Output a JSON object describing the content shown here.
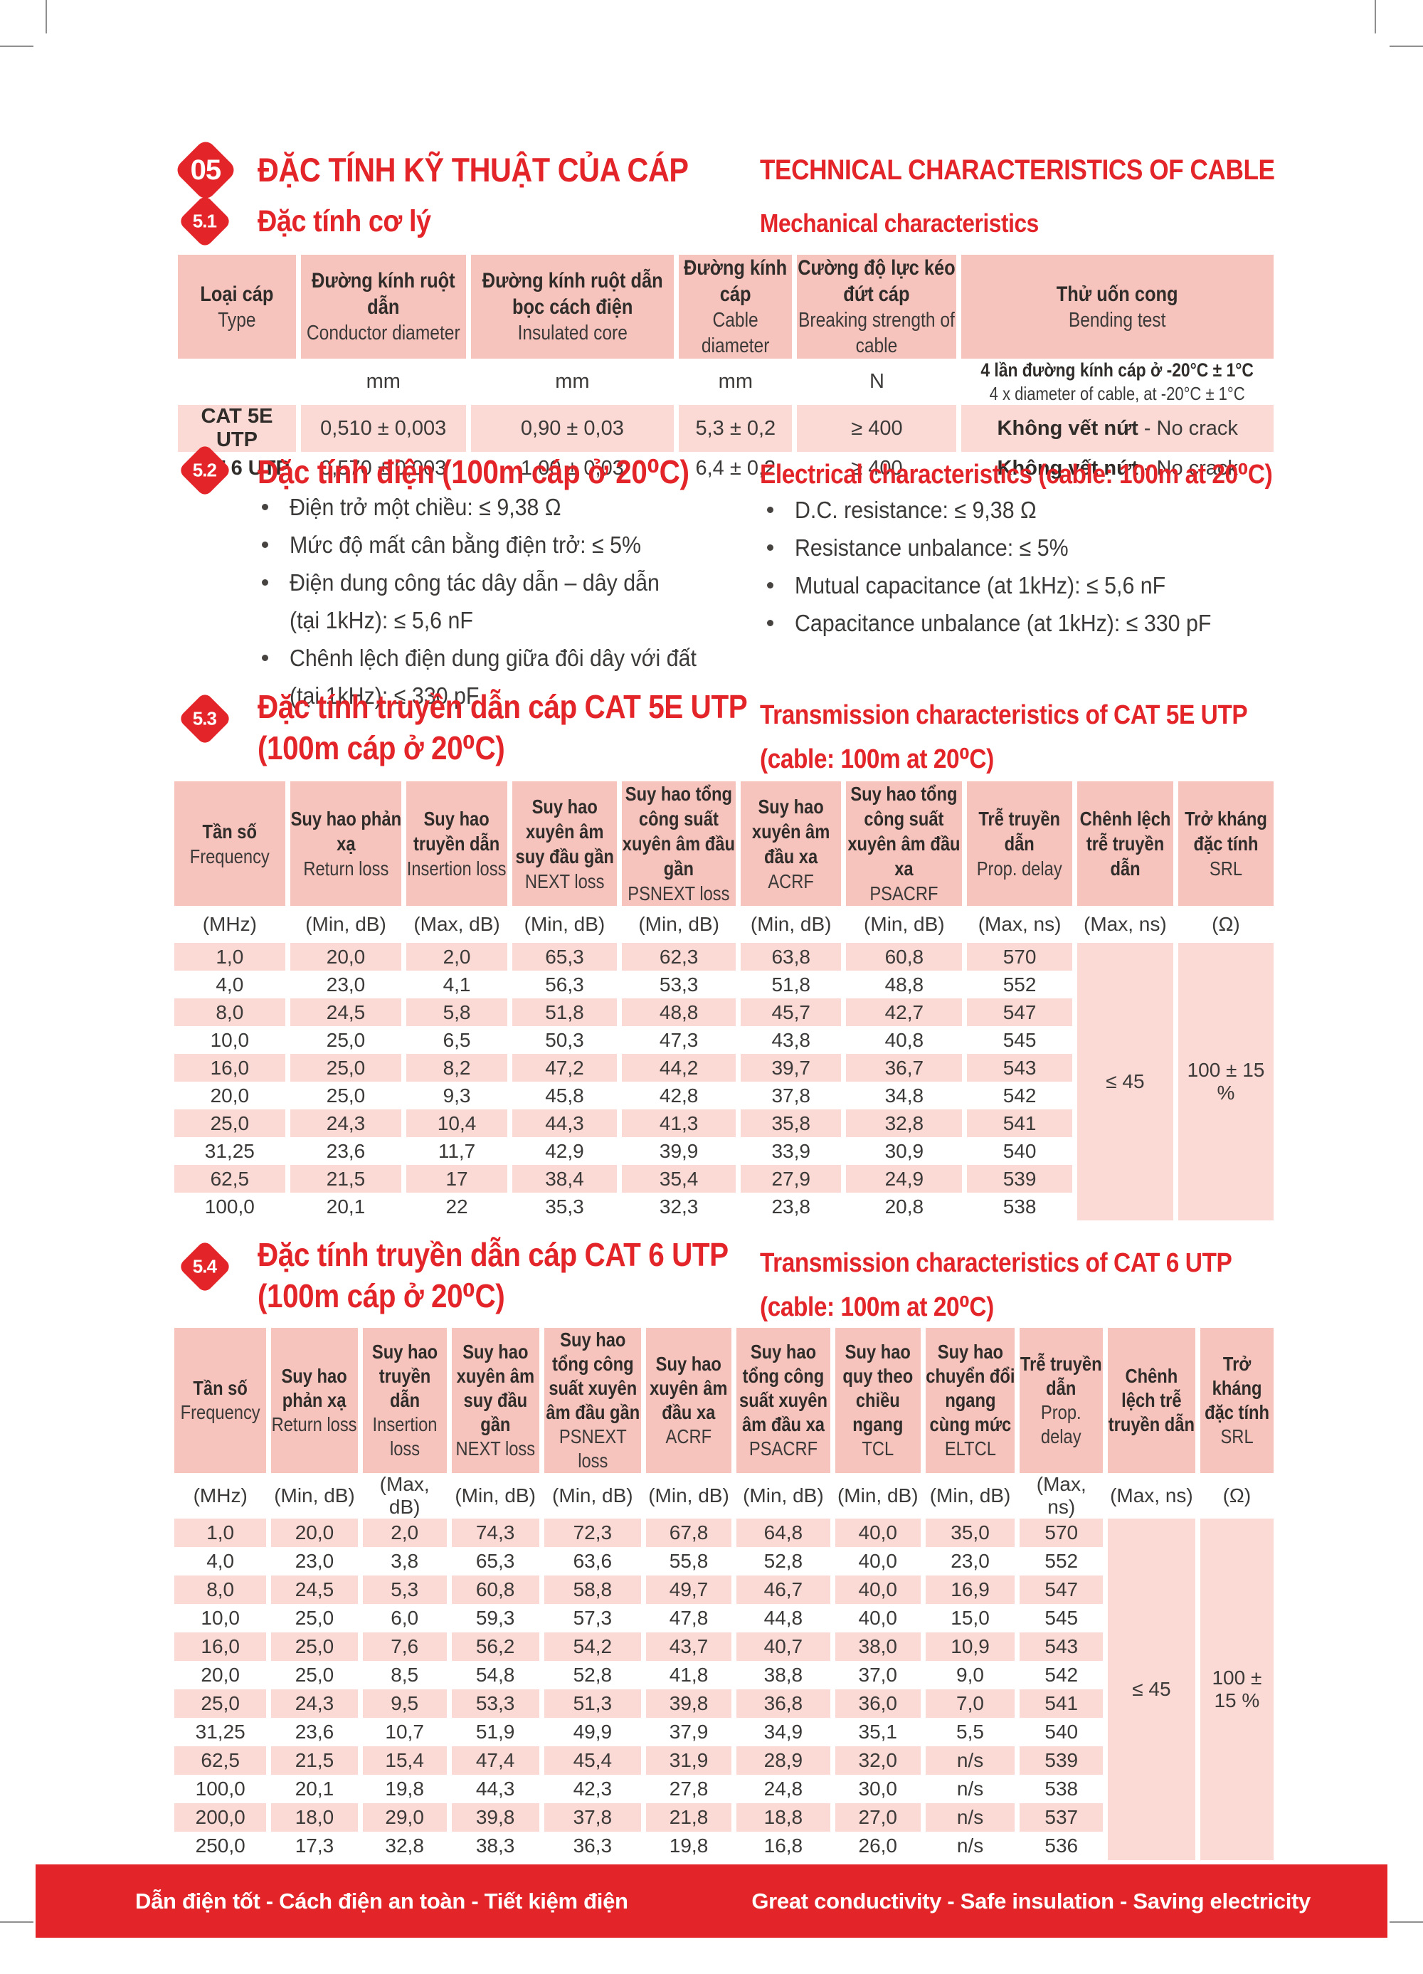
{
  "header": {
    "number": "05",
    "title_vi": "ĐẶC TÍNH KỸ THUẬT CỦA CÁP",
    "title_en": "TECHNICAL CHARACTERISTICS OF CABLE"
  },
  "colors": {
    "accent_red": "#E32429",
    "table_header_pink": "#F6C3BD",
    "row_stripe_pink": "#FBD9D4"
  },
  "mechanical": {
    "number": "5.1",
    "title_vi": "Đặc tính cơ lý",
    "title_en": "Mechanical characteristics",
    "table": {
      "columns": [
        {
          "vi": "Loại cáp",
          "en": "Type"
        },
        {
          "vi": "Đường kính ruột dẫn",
          "en": "Conductor diameter"
        },
        {
          "vi": "Đường kính ruột dẫn bọc cách điện",
          "en": "Insulated core"
        },
        {
          "vi": "Đường kính cáp",
          "en": "Cable diameter"
        },
        {
          "vi": "Cường độ lực kéo đứt cáp",
          "en": "Breaking strength of cable"
        },
        {
          "vi": "Thử uốn cong",
          "en": "Bending test"
        }
      ],
      "units": [
        "",
        "mm",
        "mm",
        "mm",
        "N",
        ""
      ],
      "bend_unit_vi": "4 lần đường kính cáp ở -20°C ± 1°C",
      "bend_unit_en": "4 x diameter of cable, at -20°C ± 1°C",
      "rows": [
        {
          "type": "CAT 5E UTP",
          "values": [
            "0,510 ± 0,003",
            "0,90 ± 0,03",
            "5,3 ± 0,2",
            "≥ 400"
          ],
          "bend_vi": "Không vết nứt",
          "bend_en": " - No crack"
        },
        {
          "type": "CAT 6 UTP",
          "values": [
            "0,570 ± 0,003",
            "1,00 ± 0,03",
            "6,4 ± 0,2",
            "≥ 400"
          ],
          "bend_vi": "Không vết nứt",
          "bend_en": " - No crack"
        }
      ]
    }
  },
  "electrical": {
    "number": "5.2",
    "title_vi": "Đặc tính điện (100m cáp ở 20⁰C)",
    "title_en": "Electrical characteristics (cable: 100m at 20⁰C)",
    "bullets_vi": [
      [
        "Điện trở một chiều: ≤ 9,38 Ω"
      ],
      [
        "Mức độ mất cân bằng điện trở: ≤ 5%"
      ],
      [
        "Điện dung công tác dây dẫn – dây dẫn",
        "(tại 1kHz): ≤ 5,6 nF"
      ],
      [
        "Chênh lệch điện dung giữa đôi dây với đất",
        "(tại 1kHz): ≤ 330 pF"
      ]
    ],
    "bullets_en": [
      [
        "D.C. resistance: ≤ 9,38 Ω"
      ],
      [
        "Resistance unbalance: ≤ 5%"
      ],
      [
        "Mutual capacitance (at 1kHz): ≤ 5,6 nF"
      ],
      [
        "Capacitance unbalance (at 1kHz): ≤ 330 pF"
      ]
    ]
  },
  "cat5e": {
    "number": "5.3",
    "title_vi_1": "Đặc tính truyền dẫn  cáp CAT 5E UTP",
    "title_vi_2": "(100m cáp ở 20⁰C)",
    "title_en_1": "Transmission characteristics of CAT 5E UTP",
    "title_en_2": "(cable: 100m at 20⁰C)",
    "table": {
      "columns": [
        {
          "vi": "Tần số",
          "en": "Frequency",
          "unit": "(MHz)"
        },
        {
          "vi": "Suy hao phản xạ",
          "en": "Return loss",
          "unit": "(Min, dB)"
        },
        {
          "vi": "Suy hao truyền dẫn",
          "en": "Insertion loss",
          "unit": "(Max, dB)"
        },
        {
          "vi": "Suy hao xuyên âm suy đầu gần",
          "en": "NEXT loss",
          "unit": "(Min, dB)"
        },
        {
          "vi": "Suy hao tổng công suất xuyên âm đầu gần",
          "en": "PSNEXT loss",
          "unit": "(Min, dB)"
        },
        {
          "vi": "Suy hao xuyên âm đầu xa",
          "en": "ACRF",
          "unit": "(Min, dB)"
        },
        {
          "vi": "Suy hao tổng công suất xuyên âm đầu xa",
          "en": "PSACRF",
          "unit": "(Min, dB)"
        },
        {
          "vi": "Trễ truyền dẫn",
          "en": "Prop. delay",
          "unit": "(Max, ns)"
        },
        {
          "vi": "Chênh lệch trễ truyền dẫn",
          "en": "",
          "unit": "(Max, ns)"
        },
        {
          "vi": "Trở kháng đặc tính",
          "en": "SRL",
          "unit": "(Ω)"
        }
      ],
      "rows": [
        [
          "1,0",
          "20,0",
          "2,0",
          "65,3",
          "62,3",
          "63,8",
          "60,8",
          "570"
        ],
        [
          "4,0",
          "23,0",
          "4,1",
          "56,3",
          "53,3",
          "51,8",
          "48,8",
          "552"
        ],
        [
          "8,0",
          "24,5",
          "5,8",
          "51,8",
          "48,8",
          "45,7",
          "42,7",
          "547"
        ],
        [
          "10,0",
          "25,0",
          "6,5",
          "50,3",
          "47,3",
          "43,8",
          "40,8",
          "545"
        ],
        [
          "16,0",
          "25,0",
          "8,2",
          "47,2",
          "44,2",
          "39,7",
          "36,7",
          "543"
        ],
        [
          "20,0",
          "25,0",
          "9,3",
          "45,8",
          "42,8",
          "37,8",
          "34,8",
          "542"
        ],
        [
          "25,0",
          "24,3",
          "10,4",
          "44,3",
          "41,3",
          "35,8",
          "32,8",
          "541"
        ],
        [
          "31,25",
          "23,6",
          "11,7",
          "42,9",
          "39,9",
          "33,9",
          "30,9",
          "540"
        ],
        [
          "62,5",
          "21,5",
          "17",
          "38,4",
          "35,4",
          "27,9",
          "24,9",
          "539"
        ],
        [
          "100,0",
          "20,1",
          "22",
          "35,3",
          "32,3",
          "23,8",
          "20,8",
          "538"
        ]
      ],
      "merged": [
        "≤ 45",
        "100 ± 15 %"
      ]
    }
  },
  "cat6": {
    "number": "5.4",
    "title_vi_1": "Đặc tính truyền dẫn  cáp CAT 6 UTP",
    "title_vi_2": "(100m cáp ở 20⁰C)",
    "title_en_1": "Transmission characteristics of CAT 6 UTP",
    "title_en_2": "(cable: 100m at 20⁰C)",
    "table": {
      "columns": [
        {
          "vi": "Tần số",
          "en": "Frequency",
          "unit": "(MHz)"
        },
        {
          "vi": "Suy hao phản xạ",
          "en": "Return loss",
          "unit": "(Min, dB)"
        },
        {
          "vi": "Suy hao truyền dẫn",
          "en": "Insertion loss",
          "unit": "(Max, dB)"
        },
        {
          "vi": "Suy hao xuyên âm suy đầu gần",
          "en": "NEXT loss",
          "unit": "(Min, dB)"
        },
        {
          "vi": "Suy hao tổng công suất xuyên âm đầu gần",
          "en": "PSNEXT loss",
          "unit": "(Min, dB)"
        },
        {
          "vi": "Suy hao xuyên âm đầu xa",
          "en": "ACRF",
          "unit": "(Min, dB)"
        },
        {
          "vi": "Suy hao tổng công suất xuyên âm đầu xa",
          "en": "PSACRF",
          "unit": "(Min, dB)"
        },
        {
          "vi": "Suy hao quy theo chiều ngang",
          "en": "TCL",
          "unit": "(Min, dB)"
        },
        {
          "vi": "Suy hao chuyển đổi ngang cùng mức",
          "en": "ELTCL",
          "unit": "(Min, dB)"
        },
        {
          "vi": "Trễ truyền dẫn",
          "en": "Prop. delay",
          "unit": "(Max, ns)"
        },
        {
          "vi": "Chênh lệch trễ truyền dẫn",
          "en": "",
          "unit": "(Max, ns)"
        },
        {
          "vi": "Trở kháng đặc tính",
          "en": "SRL",
          "unit": "(Ω)"
        }
      ],
      "rows": [
        [
          "1,0",
          "20,0",
          "2,0",
          "74,3",
          "72,3",
          "67,8",
          "64,8",
          "40,0",
          "35,0",
          "570"
        ],
        [
          "4,0",
          "23,0",
          "3,8",
          "65,3",
          "63,6",
          "55,8",
          "52,8",
          "40,0",
          "23,0",
          "552"
        ],
        [
          "8,0",
          "24,5",
          "5,3",
          "60,8",
          "58,8",
          "49,7",
          "46,7",
          "40,0",
          "16,9",
          "547"
        ],
        [
          "10,0",
          "25,0",
          "6,0",
          "59,3",
          "57,3",
          "47,8",
          "44,8",
          "40,0",
          "15,0",
          "545"
        ],
        [
          "16,0",
          "25,0",
          "7,6",
          "56,2",
          "54,2",
          "43,7",
          "40,7",
          "38,0",
          "10,9",
          "543"
        ],
        [
          "20,0",
          "25,0",
          "8,5",
          "54,8",
          "52,8",
          "41,8",
          "38,8",
          "37,0",
          "9,0",
          "542"
        ],
        [
          "25,0",
          "24,3",
          "9,5",
          "53,3",
          "51,3",
          "39,8",
          "36,8",
          "36,0",
          "7,0",
          "541"
        ],
        [
          "31,25",
          "23,6",
          "10,7",
          "51,9",
          "49,9",
          "37,9",
          "34,9",
          "35,1",
          "5,5",
          "540"
        ],
        [
          "62,5",
          "21,5",
          "15,4",
          "47,4",
          "45,4",
          "31,9",
          "28,9",
          "32,0",
          "n/s",
          "539"
        ],
        [
          "100,0",
          "20,1",
          "19,8",
          "44,3",
          "42,3",
          "27,8",
          "24,8",
          "30,0",
          "n/s",
          "538"
        ],
        [
          "200,0",
          "18,0",
          "29,0",
          "39,8",
          "37,8",
          "21,8",
          "18,8",
          "27,0",
          "n/s",
          "537"
        ],
        [
          "250,0",
          "17,3",
          "32,8",
          "38,3",
          "36,3",
          "19,8",
          "16,8",
          "26,0",
          "n/s",
          "536"
        ]
      ],
      "merged": [
        "≤ 45",
        "100 ± 15 %"
      ]
    }
  },
  "footer": {
    "slogan_vi": "Dẫn điện tốt - Cách điện an toàn - Tiết kiệm điện",
    "slogan_en": "Great conductivity - Safe insulation - Saving electricity"
  }
}
